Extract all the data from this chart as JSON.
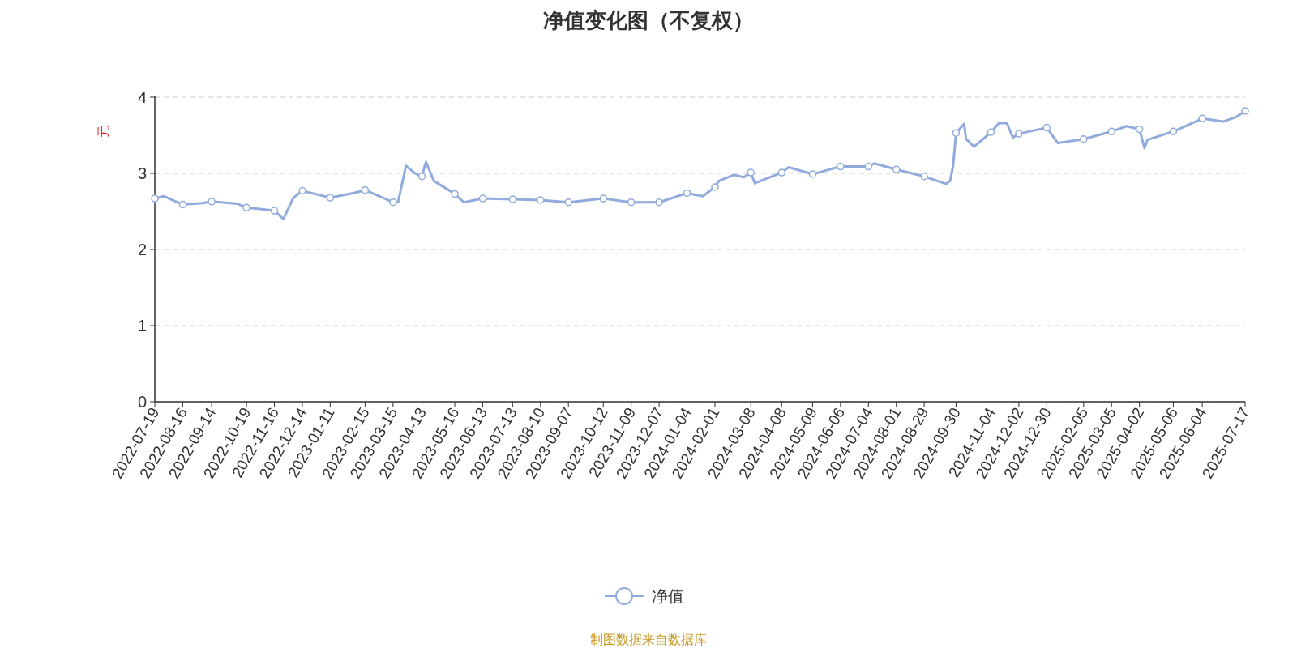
{
  "chart_data": {
    "type": "line",
    "title": "净值变化图（不复权）",
    "ylabel": "元",
    "annotations": [
      "制图数据来自数据库"
    ],
    "x": [
      "2022-07-19",
      "2022-07-28",
      "2022-08-16",
      "2022-09-05",
      "2022-09-14",
      "2022-10-10",
      "2022-10-19",
      "2022-11-16",
      "2022-11-25",
      "2022-12-05",
      "2022-12-14",
      "2023-01-11",
      "2023-02-03",
      "2023-02-15",
      "2023-03-15",
      "2023-03-20",
      "2023-03-28",
      "2023-04-06",
      "2023-04-13",
      "2023-04-17",
      "2023-04-25",
      "2023-05-16",
      "2023-05-25",
      "2023-06-13",
      "2023-07-13",
      "2023-08-10",
      "2023-09-07",
      "2023-10-12",
      "2023-11-09",
      "2023-12-07",
      "2024-01-04",
      "2024-01-20",
      "2024-02-01",
      "2024-02-05",
      "2024-02-20",
      "2024-03-01",
      "2024-03-08",
      "2024-03-12",
      "2024-04-08",
      "2024-04-15",
      "2024-05-09",
      "2024-06-06",
      "2024-07-04",
      "2024-07-10",
      "2024-08-01",
      "2024-08-29",
      "2024-09-20",
      "2024-09-24",
      "2024-09-27",
      "2024-09-30",
      "2024-10-08",
      "2024-10-10",
      "2024-10-18",
      "2024-11-04",
      "2024-11-12",
      "2024-11-20",
      "2024-11-26",
      "2024-12-02",
      "2024-12-30",
      "2025-01-10",
      "2025-02-05",
      "2025-03-05",
      "2025-03-20",
      "2025-04-02",
      "2025-04-07",
      "2025-04-10",
      "2025-05-06",
      "2025-06-04",
      "2025-06-25",
      "2025-07-08",
      "2025-07-17"
    ],
    "series": [
      {
        "name": "净值",
        "color": "#91acdc",
        "values": [
          2.67,
          2.7,
          2.59,
          2.61,
          2.63,
          2.6,
          2.55,
          2.51,
          2.4,
          2.68,
          2.77,
          2.68,
          2.74,
          2.78,
          2.62,
          2.62,
          3.1,
          3.0,
          2.96,
          3.15,
          2.9,
          2.73,
          2.62,
          2.67,
          2.66,
          2.65,
          2.62,
          2.67,
          2.62,
          2.62,
          2.74,
          2.7,
          2.82,
          2.9,
          2.98,
          2.95,
          3.01,
          2.87,
          3.01,
          3.08,
          2.99,
          3.09,
          3.09,
          3.13,
          3.05,
          2.96,
          2.86,
          2.9,
          3.1,
          3.53,
          3.65,
          3.45,
          3.35,
          3.54,
          3.66,
          3.66,
          3.47,
          3.52,
          3.6,
          3.4,
          3.45,
          3.55,
          3.62,
          3.58,
          3.33,
          3.44,
          3.55,
          3.72,
          3.68,
          3.74,
          3.82
        ]
      }
    ],
    "xlim": [
      "2022-07-19",
      "2025-07-17"
    ],
    "xticks": [
      "2022-07-19",
      "2022-08-16",
      "2022-09-14",
      "2022-10-19",
      "2022-11-16",
      "2022-12-14",
      "2023-01-11",
      "2023-02-15",
      "2023-03-15",
      "2023-04-13",
      "2023-05-16",
      "2023-06-13",
      "2023-07-13",
      "2023-08-10",
      "2023-09-07",
      "2023-10-12",
      "2023-11-09",
      "2023-12-07",
      "2024-01-04",
      "2024-02-01",
      "2024-03-08",
      "2024-04-08",
      "2024-05-09",
      "2024-06-06",
      "2024-07-04",
      "2024-08-01",
      "2024-08-29",
      "2024-09-30",
      "2024-11-04",
      "2024-12-02",
      "2024-12-30",
      "2025-02-05",
      "2025-03-05",
      "2025-04-02",
      "2025-05-06",
      "2025-06-04",
      "2025-07-17"
    ],
    "ylim": [
      0,
      4
    ],
    "yticks": [
      0,
      1,
      2,
      3,
      4
    ],
    "grid": "y",
    "legend": "bottom",
    "marker": "circle",
    "line_style": "solid"
  }
}
